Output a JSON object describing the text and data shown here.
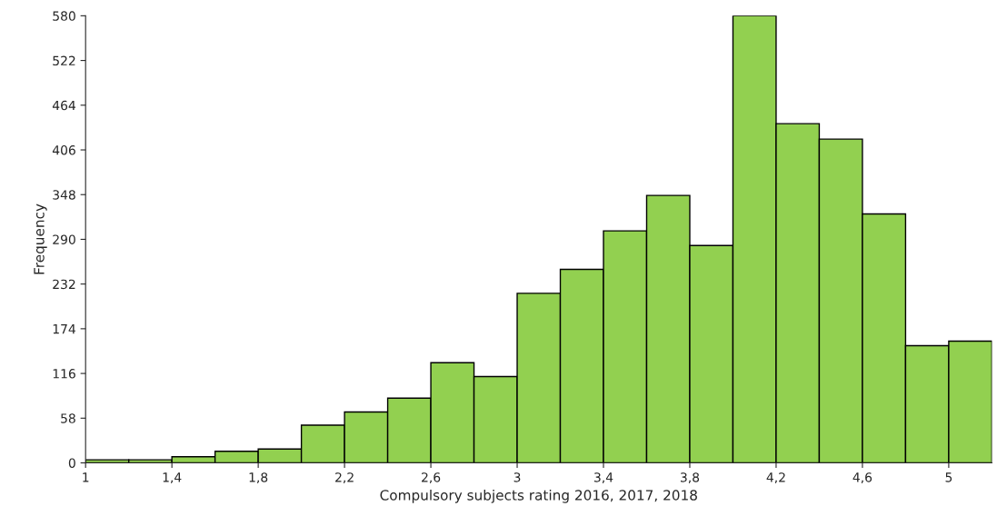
{
  "chart_data": {
    "type": "histogram",
    "xlabel": "Compulsory subjects rating 2016, 2017, 2018",
    "ylabel": "Frequency",
    "bins": [
      1,
      1.2,
      1.4,
      1.6,
      1.8,
      2,
      2.2,
      2.4,
      2.6,
      2.8,
      3,
      3.2,
      3.4,
      3.6,
      3.8,
      4,
      4.2,
      4.4,
      4.6,
      4.8,
      5,
      5.2
    ],
    "values": [
      4,
      4,
      8,
      15,
      18,
      49,
      66,
      84,
      130,
      112,
      220,
      251,
      301,
      347,
      282,
      580,
      440,
      420,
      323,
      152,
      158
    ],
    "color": "#92d050",
    "xlim": [
      1,
      5.2
    ],
    "ylim": [
      0,
      580
    ],
    "xticks": [
      1,
      {
        "value": 1.4,
        "label": "1,4"
      },
      {
        "value": 1.8,
        "label": "1,8"
      },
      {
        "value": 2.2,
        "label": "2,2"
      },
      {
        "value": 2.6,
        "label": "2,6"
      },
      3,
      {
        "value": 3.4,
        "label": "3,4"
      },
      {
        "value": 3.8,
        "label": "3,8"
      },
      {
        "value": 4.2,
        "label": "4,2"
      },
      {
        "value": 4.6,
        "label": "4,6"
      },
      5
    ],
    "yticks": [
      0,
      58,
      116,
      174,
      232,
      290,
      348,
      406,
      464,
      522,
      580
    ],
    "grid": false
  }
}
